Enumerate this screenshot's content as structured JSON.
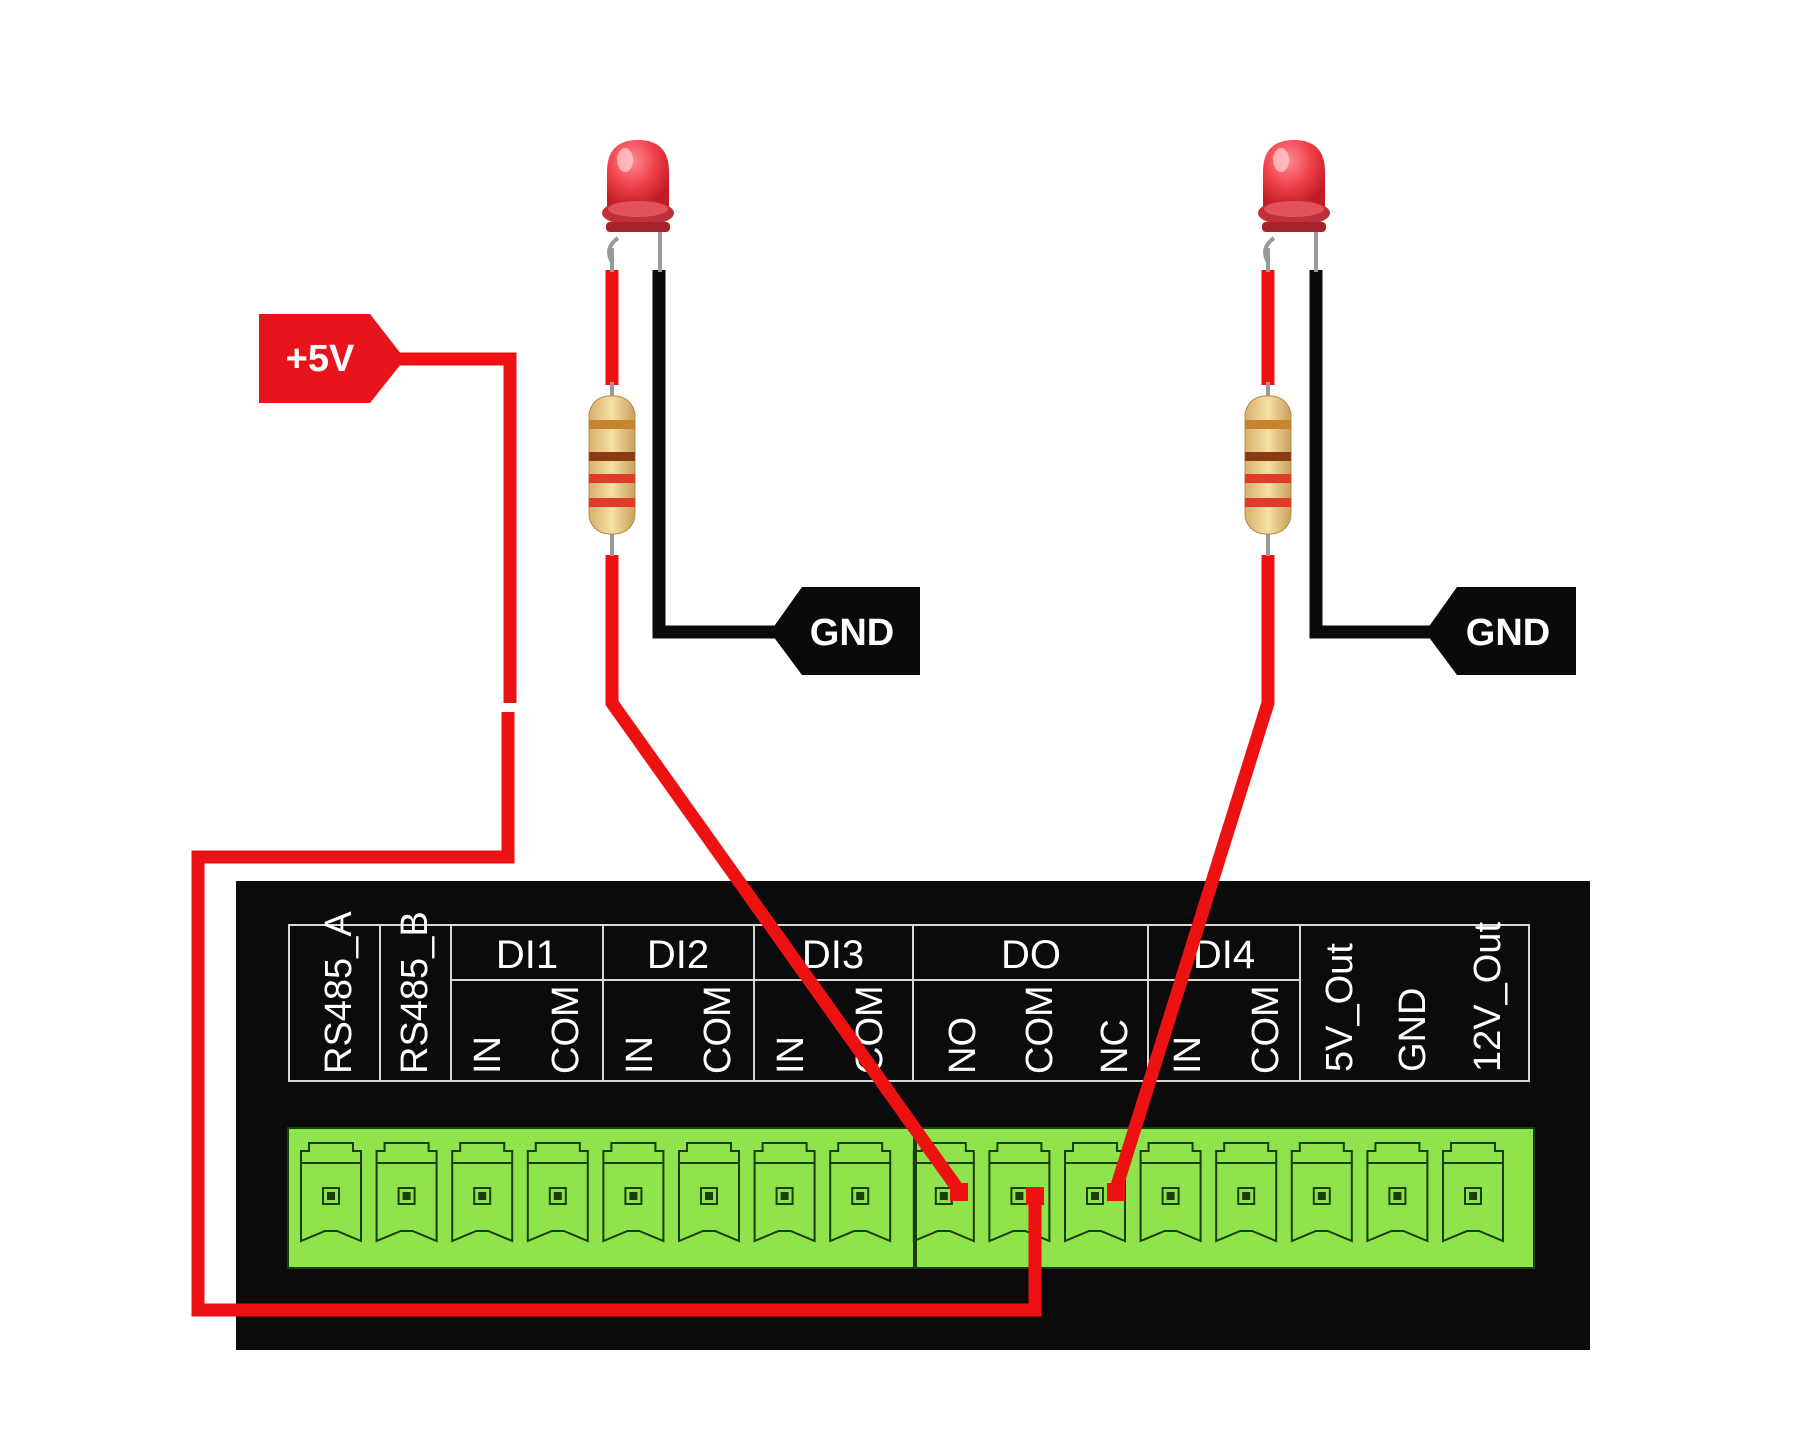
{
  "power_tag": {
    "text": "+5V",
    "color": "#e8141b"
  },
  "gnd_tags": [
    {
      "text": "GND"
    },
    {
      "text": "GND"
    }
  ],
  "terminal_block": {
    "groups": [
      {
        "label": "RS485_A",
        "vertical": true
      },
      {
        "label": "RS485_B",
        "vertical": true
      },
      {
        "label": "DI1",
        "pins": [
          "IN",
          "COM"
        ]
      },
      {
        "label": "DI2",
        "pins": [
          "IN",
          "COM"
        ]
      },
      {
        "label": "DI3",
        "pins": [
          "IN",
          "COM"
        ]
      },
      {
        "label": "DO",
        "pins": [
          "NO",
          "COM",
          "NC"
        ]
      },
      {
        "label": "DI4",
        "pins": [
          "IN",
          "COM"
        ]
      },
      {
        "label": "5V_Out",
        "vertical": true
      },
      {
        "label": "GND",
        "vertical": true
      },
      {
        "label": "12V_Out",
        "vertical": true
      }
    ],
    "terminal_count": 16,
    "terminal_color": "#8ee44a",
    "board_color": "#0b0b0b"
  },
  "wires": {
    "power_color": "#ee1111",
    "ground_color": "#0a0a0a"
  },
  "components": [
    {
      "type": "led",
      "color": "#e8323d"
    },
    {
      "type": "resistor"
    },
    {
      "type": "led",
      "color": "#e8323d"
    },
    {
      "type": "resistor"
    }
  ]
}
